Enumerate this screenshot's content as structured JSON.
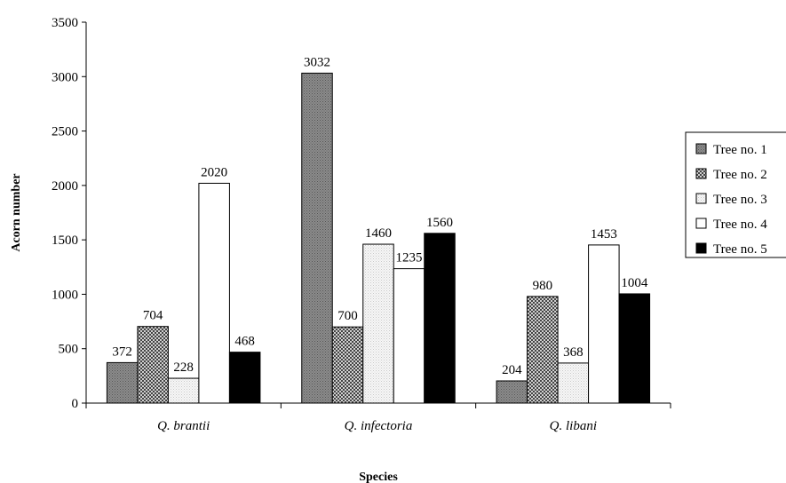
{
  "chart_data": {
    "type": "bar",
    "title": "",
    "xlabel": "Species",
    "ylabel": "Acorn number",
    "ylim": [
      0,
      3500
    ],
    "yticks": [
      0,
      500,
      1000,
      1500,
      2000,
      2500,
      3000,
      3500
    ],
    "categories": [
      "Q. brantii",
      "Q. infectoria",
      "Q. libani"
    ],
    "series": [
      {
        "name": "Tree no. 1",
        "values": [
          372,
          3032,
          204
        ],
        "color": "#808080",
        "pattern": "dots-dark"
      },
      {
        "name": "Tree no. 2",
        "values": [
          704,
          700,
          980
        ],
        "color": "#9a9a9a",
        "pattern": "checker"
      },
      {
        "name": "Tree no. 3",
        "values": [
          228,
          1460,
          368
        ],
        "color": "#f2f2f2",
        "pattern": "dots-light"
      },
      {
        "name": "Tree no. 4",
        "values": [
          2020,
          1235,
          1453
        ],
        "color": "#ffffff",
        "pattern": "none"
      },
      {
        "name": "Tree no. 5",
        "values": [
          468,
          1560,
          1004
        ],
        "color": "#000000",
        "pattern": "none"
      }
    ],
    "data_labels": true,
    "legend_position": "right",
    "grid": false
  }
}
